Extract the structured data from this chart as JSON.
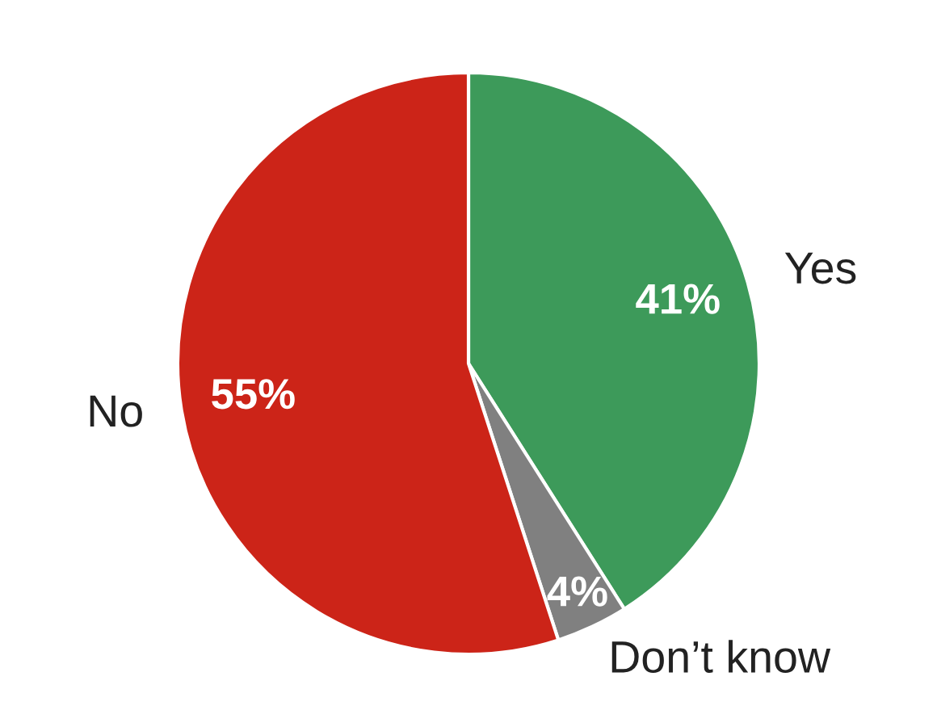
{
  "chart_data": {
    "type": "pie",
    "categories": [
      "Yes",
      "Don’t know",
      "No"
    ],
    "values": [
      41,
      4,
      55
    ],
    "colors": [
      "#3d9a5a",
      "#808080",
      "#cc2418"
    ],
    "value_labels": [
      "41%",
      "4%",
      "55%"
    ]
  }
}
